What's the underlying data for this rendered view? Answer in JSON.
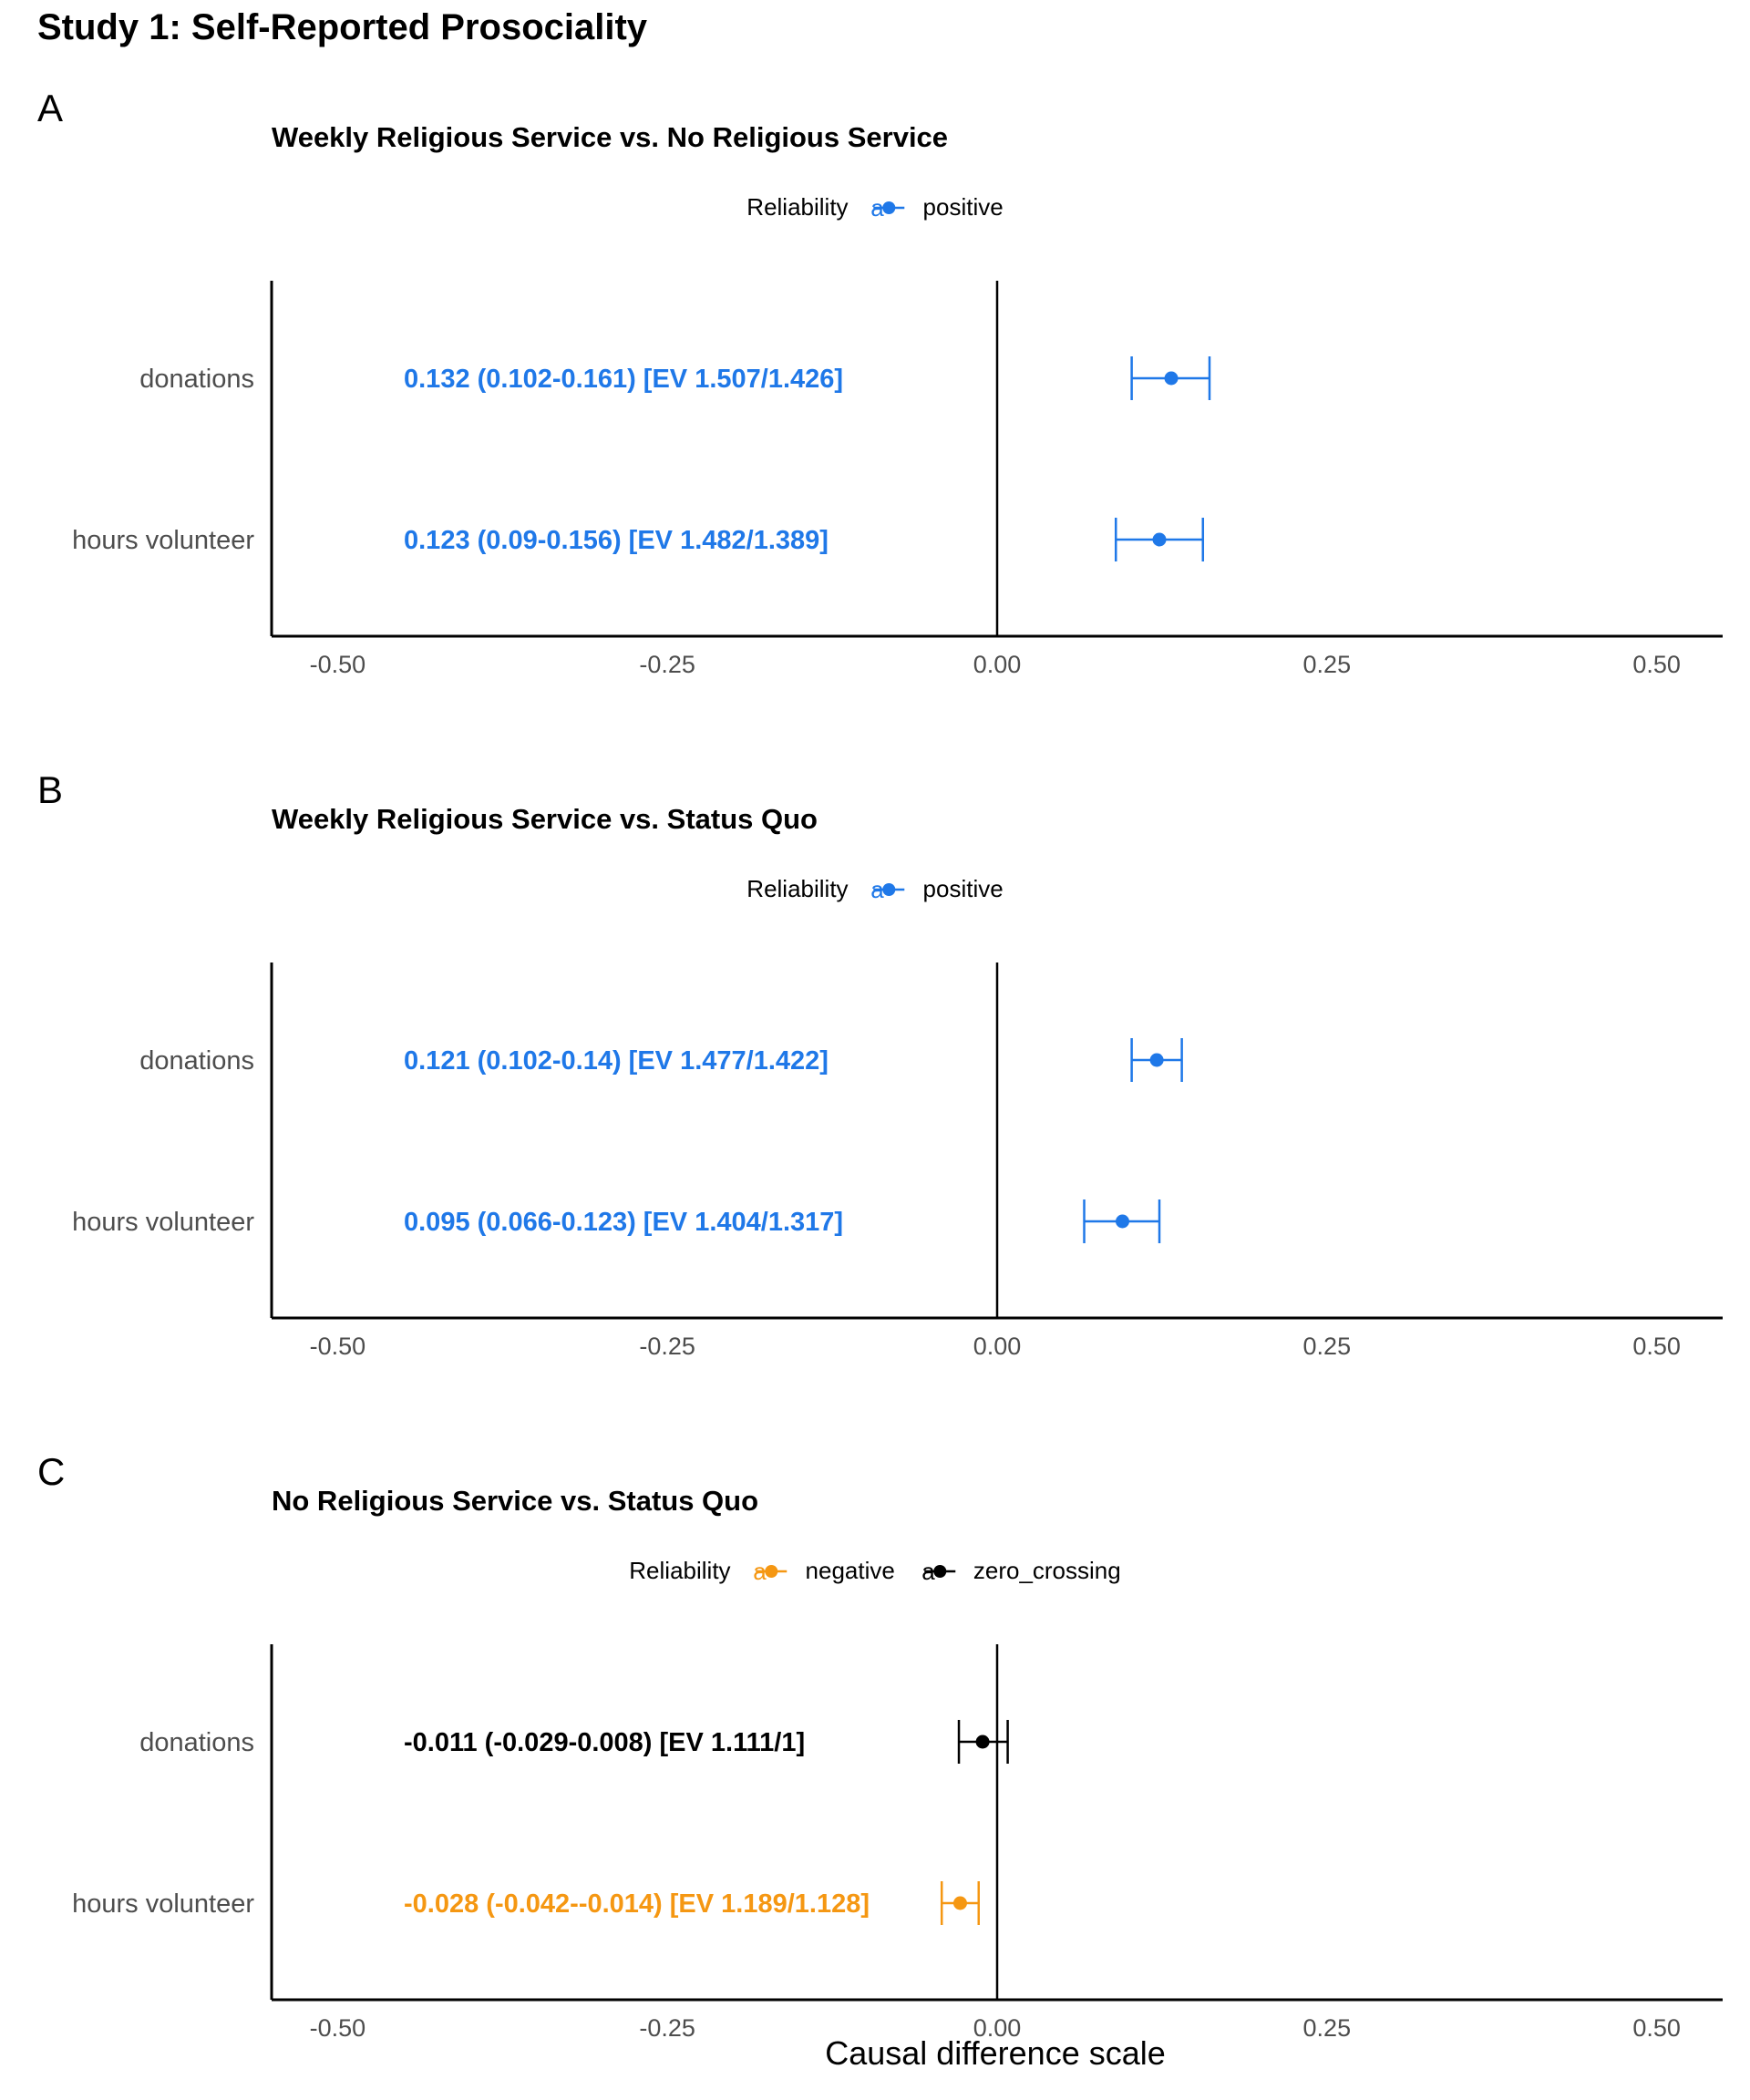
{
  "title": "Study 1: Self-Reported Prosociality",
  "xlabel": "Causal difference scale",
  "legend_title": "Reliability",
  "reliability_colors": {
    "positive": "#1f78e8",
    "negative": "#f59712",
    "zero_crossing": "#000000"
  },
  "chart_data": [
    {
      "type": "forest",
      "panel": "A",
      "title": "Weekly Religious Service vs. No Religious Service",
      "xlim": [
        -0.55,
        0.55
      ],
      "x_ticks": [
        "-0.50",
        "-0.25",
        "0.00",
        "0.25",
        "0.50"
      ],
      "legend": [
        "positive"
      ],
      "rows": [
        {
          "outcome": "donations",
          "estimate": 0.132,
          "lower": 0.102,
          "upper": 0.161,
          "reliability": "positive",
          "label": "0.132 (0.102-0.161) [EV 1.507/1.426]"
        },
        {
          "outcome": "hours volunteer",
          "estimate": 0.123,
          "lower": 0.09,
          "upper": 0.156,
          "reliability": "positive",
          "label": "0.123 (0.09-0.156) [EV 1.482/1.389]"
        }
      ]
    },
    {
      "type": "forest",
      "panel": "B",
      "title": "Weekly Religious Service vs. Status Quo",
      "xlim": [
        -0.55,
        0.55
      ],
      "x_ticks": [
        "-0.50",
        "-0.25",
        "0.00",
        "0.25",
        "0.50"
      ],
      "legend": [
        "positive"
      ],
      "rows": [
        {
          "outcome": "donations",
          "estimate": 0.121,
          "lower": 0.102,
          "upper": 0.14,
          "reliability": "positive",
          "label": "0.121 (0.102-0.14) [EV 1.477/1.422]"
        },
        {
          "outcome": "hours volunteer",
          "estimate": 0.095,
          "lower": 0.066,
          "upper": 0.123,
          "reliability": "positive",
          "label": "0.095 (0.066-0.123) [EV 1.404/1.317]"
        }
      ]
    },
    {
      "type": "forest",
      "panel": "C",
      "title": "No Religious Service vs. Status Quo",
      "xlim": [
        -0.55,
        0.55
      ],
      "x_ticks": [
        "-0.50",
        "-0.25",
        "0.00",
        "0.25",
        "0.50"
      ],
      "legend": [
        "negative",
        "zero_crossing"
      ],
      "rows": [
        {
          "outcome": "donations",
          "estimate": -0.011,
          "lower": -0.029,
          "upper": 0.008,
          "reliability": "zero_crossing",
          "label": "-0.011 (-0.029-0.008) [EV 1.111/1]"
        },
        {
          "outcome": "hours volunteer",
          "estimate": -0.028,
          "lower": -0.042,
          "upper": -0.014,
          "reliability": "negative",
          "label": "-0.028 (-0.042--0.014) [EV 1.189/1.128]"
        }
      ]
    }
  ]
}
